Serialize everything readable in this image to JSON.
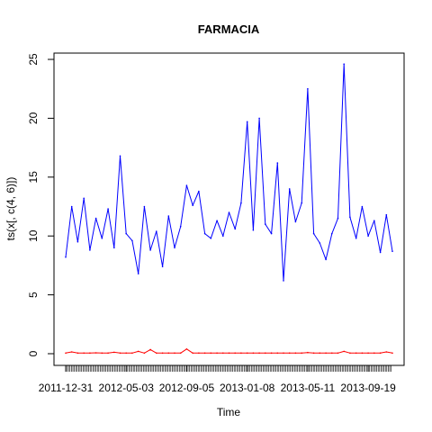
{
  "chart_data": {
    "type": "line",
    "title": "FARMACIA",
    "xlabel": "Time",
    "ylabel": "ts(x[, c(4, 6)])",
    "ylim": [
      0,
      25
    ],
    "y_ticks": [
      0,
      5,
      10,
      15,
      20,
      25
    ],
    "x_tick_labels": [
      "2011-12-31",
      "2012-05-03",
      "2012-09-05",
      "2013-01-08",
      "2013-05-11",
      "2013-09-19"
    ],
    "x_tick_positions": [
      0,
      1,
      2,
      3,
      4,
      5
    ],
    "series": [
      {
        "color": "#0000ff",
        "x": [
          0.0,
          0.1,
          0.2,
          0.3,
          0.4,
          0.5,
          0.6,
          0.7,
          0.8,
          0.9,
          1.0,
          1.1,
          1.2,
          1.3,
          1.4,
          1.5,
          1.6,
          1.7,
          1.8,
          1.9,
          2.0,
          2.1,
          2.2,
          2.3,
          2.4,
          2.5,
          2.6,
          2.7,
          2.8,
          2.9,
          3.0,
          3.1,
          3.2,
          3.3,
          3.4,
          3.5,
          3.6,
          3.7,
          3.8,
          3.9,
          4.0,
          4.1,
          4.2,
          4.3,
          4.4,
          4.5,
          4.6,
          4.7,
          4.8,
          4.9,
          5.0,
          5.1,
          5.2,
          5.3,
          5.4
        ],
        "values": [
          8.2,
          12.5,
          9.5,
          13.2,
          8.8,
          11.5,
          9.8,
          12.3,
          9.0,
          16.8,
          10.2,
          9.6,
          6.8,
          12.5,
          8.8,
          10.4,
          7.4,
          11.7,
          9.0,
          10.8,
          14.3,
          12.6,
          13.8,
          10.2,
          9.8,
          11.3,
          10.0,
          12.0,
          10.6,
          12.8,
          19.7,
          10.5,
          20.0,
          11.0,
          10.2,
          16.2,
          6.2,
          14.0,
          11.2,
          12.8,
          22.5,
          10.2,
          9.4,
          8.0,
          10.2,
          11.5,
          24.6,
          11.6,
          9.8,
          12.5,
          10.0,
          11.3,
          8.6,
          11.8,
          8.7
        ]
      },
      {
        "color": "#ff0000",
        "x": [
          0.0,
          0.1,
          0.2,
          0.3,
          0.4,
          0.5,
          0.6,
          0.7,
          0.8,
          0.9,
          1.0,
          1.1,
          1.2,
          1.3,
          1.4,
          1.5,
          1.6,
          1.7,
          1.8,
          1.9,
          2.0,
          2.1,
          2.2,
          2.3,
          2.4,
          2.5,
          2.6,
          2.7,
          2.8,
          2.9,
          3.0,
          3.1,
          3.2,
          3.3,
          3.4,
          3.5,
          3.6,
          3.7,
          3.8,
          3.9,
          4.0,
          4.1,
          4.2,
          4.3,
          4.4,
          4.5,
          4.6,
          4.7,
          4.8,
          4.9,
          5.0,
          5.1,
          5.2,
          5.3,
          5.4
        ],
        "values": [
          0.05,
          0.15,
          0.05,
          0.05,
          0.05,
          0.08,
          0.05,
          0.05,
          0.12,
          0.05,
          0.05,
          0.05,
          0.2,
          0.05,
          0.35,
          0.05,
          0.05,
          0.05,
          0.05,
          0.05,
          0.4,
          0.05,
          0.05,
          0.05,
          0.05,
          0.05,
          0.05,
          0.05,
          0.05,
          0.05,
          0.05,
          0.05,
          0.05,
          0.05,
          0.05,
          0.05,
          0.05,
          0.05,
          0.05,
          0.05,
          0.1,
          0.05,
          0.05,
          0.05,
          0.05,
          0.05,
          0.2,
          0.05,
          0.05,
          0.05,
          0.05,
          0.05,
          0.05,
          0.15,
          0.05
        ]
      }
    ]
  }
}
